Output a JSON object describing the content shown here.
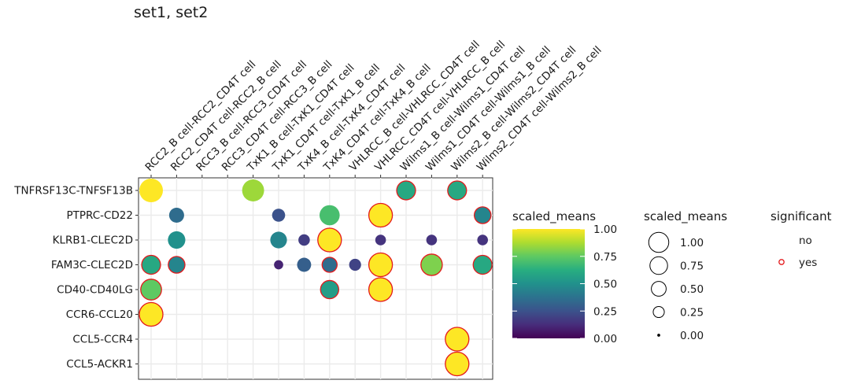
{
  "chart_data": {
    "type": "scatter",
    "title": "set1, set2",
    "columns": [
      "RCC2_B cell-RCC2_CD4T cell",
      "RCC2_CD4T cell-RCC2_B cell",
      "RCC3_B cell-RCC3_CD4T cell",
      "RCC3_CD4T cell-RCC3_B cell",
      "TxK1_B cell-TxK1_CD4T cell",
      "TxK1_CD4T cell-TxK1_B cell",
      "TxK4_B cell-TxK4_CD4T cell",
      "TxK4_CD4T cell-TxK4_B cell",
      "VHLRCC_B cell-VHLRCC_CD4T cell",
      "VHLRCC_CD4T cell-VHLRCC_B cell",
      "Wilms1_B cell-Wilms1_CD4T cell",
      "Wilms1_CD4T cell-Wilms1_B cell",
      "Wilms2_B cell-Wilms2_CD4T cell",
      "Wilms2_CD4T cell-Wilms2_B cell"
    ],
    "rows": [
      "TNFRSF13C-TNFSF13B",
      "PTPRC-CD22",
      "KLRB1-CLEC2D",
      "FAM3C-CLEC2D",
      "CD40-CD40LG",
      "CCR6-CCL20",
      "CCL5-CCR4",
      "CCL5-ACKR1"
    ],
    "points": [
      {
        "row": 0,
        "col": 0,
        "value": 1.0,
        "significant": "no"
      },
      {
        "row": 0,
        "col": 4,
        "value": 0.85,
        "significant": "no"
      },
      {
        "row": 0,
        "col": 10,
        "value": 0.6,
        "significant": "yes"
      },
      {
        "row": 0,
        "col": 12,
        "value": 0.6,
        "significant": "yes"
      },
      {
        "row": 1,
        "col": 1,
        "value": 0.35,
        "significant": "no"
      },
      {
        "row": 1,
        "col": 5,
        "value": 0.25,
        "significant": "no"
      },
      {
        "row": 1,
        "col": 7,
        "value": 0.7,
        "significant": "no"
      },
      {
        "row": 1,
        "col": 9,
        "value": 1.0,
        "significant": "yes"
      },
      {
        "row": 1,
        "col": 13,
        "value": 0.45,
        "significant": "yes"
      },
      {
        "row": 2,
        "col": 1,
        "value": 0.5,
        "significant": "no"
      },
      {
        "row": 2,
        "col": 5,
        "value": 0.45,
        "significant": "no"
      },
      {
        "row": 2,
        "col": 6,
        "value": 0.18,
        "significant": "no"
      },
      {
        "row": 2,
        "col": 7,
        "value": 1.0,
        "significant": "yes"
      },
      {
        "row": 2,
        "col": 9,
        "value": 0.15,
        "significant": "no"
      },
      {
        "row": 2,
        "col": 11,
        "value": 0.15,
        "significant": "no"
      },
      {
        "row": 2,
        "col": 13,
        "value": 0.15,
        "significant": "no"
      },
      {
        "row": 3,
        "col": 0,
        "value": 0.6,
        "significant": "yes"
      },
      {
        "row": 3,
        "col": 1,
        "value": 0.45,
        "significant": "yes"
      },
      {
        "row": 3,
        "col": 5,
        "value": 0.1,
        "significant": "no"
      },
      {
        "row": 3,
        "col": 6,
        "value": 0.3,
        "significant": "no"
      },
      {
        "row": 3,
        "col": 7,
        "value": 0.35,
        "significant": "yes"
      },
      {
        "row": 3,
        "col": 8,
        "value": 0.2,
        "significant": "no"
      },
      {
        "row": 3,
        "col": 9,
        "value": 1.0,
        "significant": "yes"
      },
      {
        "row": 3,
        "col": 11,
        "value": 0.8,
        "significant": "yes"
      },
      {
        "row": 3,
        "col": 13,
        "value": 0.6,
        "significant": "yes"
      },
      {
        "row": 4,
        "col": 0,
        "value": 0.75,
        "significant": "yes"
      },
      {
        "row": 4,
        "col": 7,
        "value": 0.55,
        "significant": "yes"
      },
      {
        "row": 4,
        "col": 9,
        "value": 1.0,
        "significant": "yes"
      },
      {
        "row": 5,
        "col": 0,
        "value": 1.0,
        "significant": "yes"
      },
      {
        "row": 6,
        "col": 12,
        "value": 1.0,
        "significant": "yes"
      },
      {
        "row": 7,
        "col": 12,
        "value": 1.0,
        "significant": "yes"
      }
    ],
    "color_legend": {
      "title": "scaled_means",
      "ticks": [
        "1.00",
        "0.75",
        "0.50",
        "0.25",
        "0.00"
      ],
      "tick_values": [
        1.0,
        0.75,
        0.5,
        0.25,
        0.0
      ],
      "range": [
        0,
        1
      ],
      "palette": "viridis"
    },
    "size_legend": {
      "title": "scaled_means",
      "labels": [
        "1.00",
        "0.75",
        "0.50",
        "0.25",
        "0.00"
      ],
      "values": [
        1.0,
        0.75,
        0.5,
        0.25,
        0.0
      ]
    },
    "significance_legend": {
      "title": "significant",
      "labels": [
        "no",
        "yes"
      ],
      "stroke_colors": [
        "#ffffff",
        "#e41a1c"
      ]
    },
    "grid": true
  }
}
